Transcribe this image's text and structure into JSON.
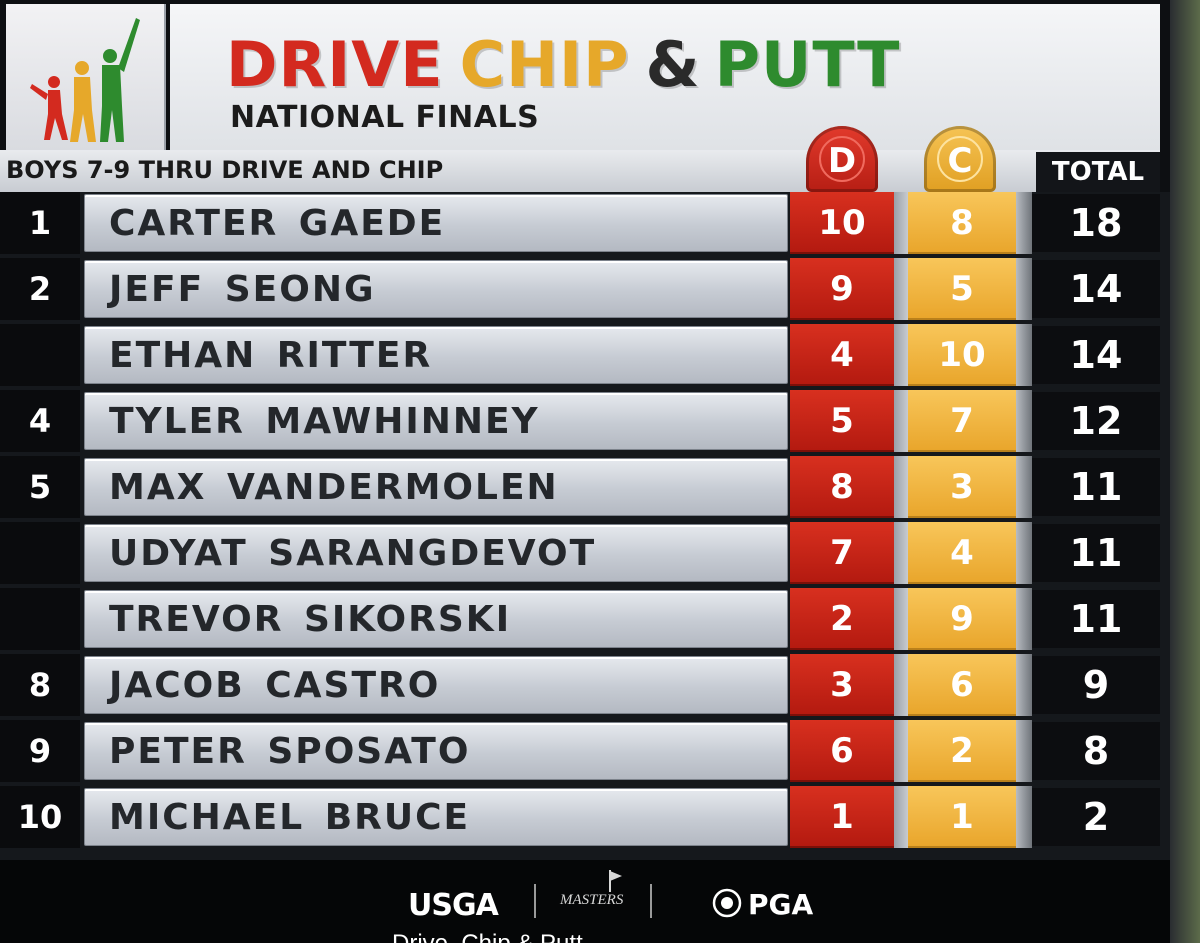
{
  "header": {
    "title_drive": "DRIVE",
    "title_chip": "CHIP",
    "title_amp": "&",
    "title_putt": "PUTT",
    "subtitle": "NATIONAL FINALS"
  },
  "table": {
    "category": "BOYS 7-9 THRU DRIVE AND CHIP",
    "drive_tab": "D",
    "chip_tab": "C",
    "total_label": "TOTAL",
    "rows": [
      {
        "rank": "1",
        "name": "CARTER GAEDE",
        "drive": "10",
        "chip": "8",
        "total": "18"
      },
      {
        "rank": "2",
        "name": "JEFF SEONG",
        "drive": "9",
        "chip": "5",
        "total": "14"
      },
      {
        "rank": "",
        "name": "ETHAN RITTER",
        "drive": "4",
        "chip": "10",
        "total": "14"
      },
      {
        "rank": "4",
        "name": "TYLER MAWHINNEY",
        "drive": "5",
        "chip": "7",
        "total": "12"
      },
      {
        "rank": "5",
        "name": "MAX VANDERMOLEN",
        "drive": "8",
        "chip": "3",
        "total": "11"
      },
      {
        "rank": "",
        "name": "UDYAT SARANGDEVOT",
        "drive": "7",
        "chip": "4",
        "total": "11"
      },
      {
        "rank": "",
        "name": "TREVOR SIKORSKI",
        "drive": "2",
        "chip": "9",
        "total": "11"
      },
      {
        "rank": "8",
        "name": "JACOB CASTRO",
        "drive": "3",
        "chip": "6",
        "total": "9"
      },
      {
        "rank": "9",
        "name": "PETER SPOSATO",
        "drive": "6",
        "chip": "2",
        "total": "8"
      },
      {
        "rank": "10",
        "name": "MICHAEL BRUCE",
        "drive": "1",
        "chip": "1",
        "total": "2"
      }
    ]
  },
  "footer": {
    "sponsor_usga": "USGA",
    "sponsor_masters": "MASTERS",
    "sponsor_pga": "PGA",
    "caption": "Drive, Chip & Putt"
  },
  "colors": {
    "drive_red": "#d32a1f",
    "chip_gold": "#e6a82a",
    "putt_green": "#2e8b2e"
  }
}
